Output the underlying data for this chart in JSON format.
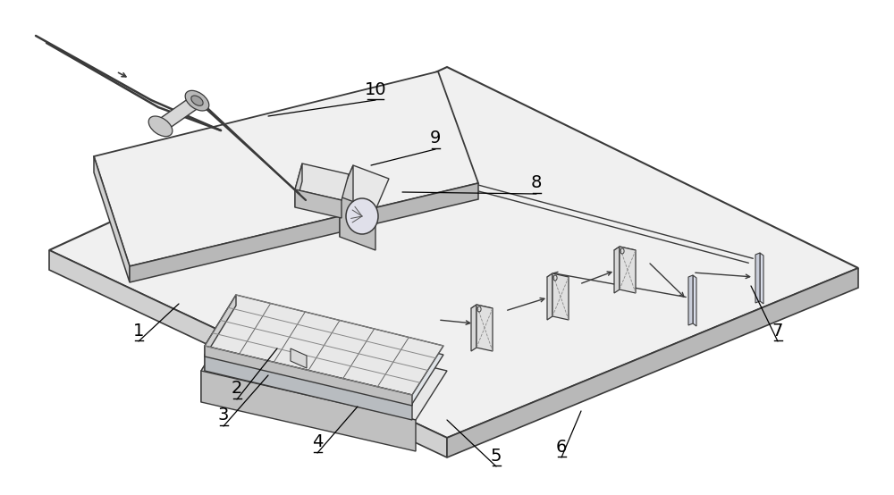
{
  "bg_color": "#ffffff",
  "lc": "#3a3a3a",
  "fc_plate": "#f2f2f2",
  "fc_plate_left": "#d8d8d8",
  "fc_plate_front": "#c0c0c0",
  "fc_box_top": "#ebebeb",
  "fc_box_left": "#d0d0d0",
  "fc_box_front": "#b8b8b8",
  "fc_lens": "#e0e0e8",
  "fc_mirror": "#dde0e8",
  "figsize": [
    10.0,
    5.54
  ],
  "dpi": 100
}
